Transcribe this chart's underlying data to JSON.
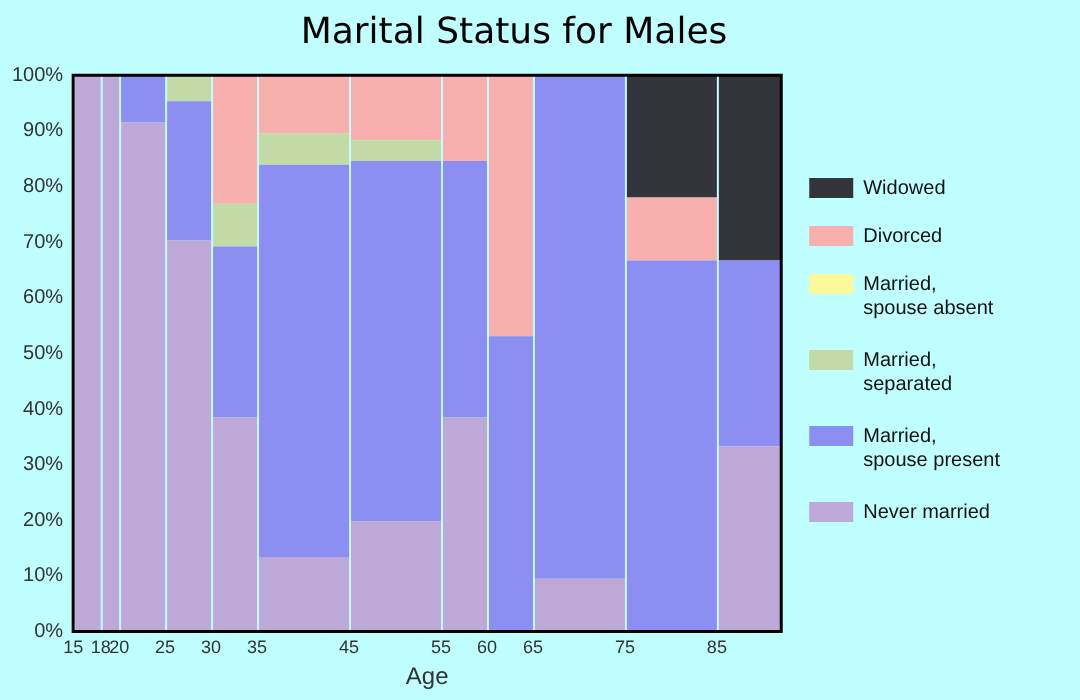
{
  "chart_data": {
    "type": "bar",
    "stacked": true,
    "title": "Marital Status for Males",
    "xlabel": "Age",
    "x": [
      16.5,
      19,
      22.5,
      27.5,
      32.5,
      40,
      50,
      57.5,
      62.5,
      70,
      80,
      88.5
    ],
    "xlim": [
      15,
      92
    ],
    "xticks": [
      15,
      18,
      20,
      25,
      30,
      35,
      45,
      55,
      60,
      65,
      75,
      85
    ],
    "ylim": [
      0,
      100
    ],
    "yticks": [
      {
        "value": 0,
        "label": "0%"
      },
      {
        "value": 10,
        "label": "10%"
      },
      {
        "value": 20,
        "label": "20%"
      },
      {
        "value": 30,
        "label": "30%"
      },
      {
        "value": 40,
        "label": "40%"
      },
      {
        "value": 50,
        "label": "50%"
      },
      {
        "value": 60,
        "label": "60%"
      },
      {
        "value": 70,
        "label": "70%"
      },
      {
        "value": 80,
        "label": "80%"
      },
      {
        "value": 90,
        "label": "90%"
      },
      {
        "value": 100,
        "label": "100%"
      }
    ],
    "grid": false,
    "legend": "right",
    "series": [
      {
        "name": "Never married",
        "color": "#bea8d8",
        "values": [
          100,
          100,
          91.5,
          70.3,
          38.5,
          13.4,
          19.8,
          38.5,
          0,
          9.5,
          0,
          33.3
        ]
      },
      {
        "name": "Married,\nspouse present",
        "color": "#8d8ef2",
        "values": [
          0,
          0,
          8.5,
          25,
          30.7,
          70.5,
          64.8,
          46.1,
          53.1,
          90.5,
          66.7,
          33.4
        ]
      },
      {
        "name": "Married,\nseparated",
        "color": "#c2dba6",
        "values": [
          0,
          0,
          0,
          4.7,
          7.7,
          5.6,
          3.7,
          0,
          0,
          0,
          0,
          0
        ]
      },
      {
        "name": "Married,\nspouse absent",
        "color": "#fdf99b",
        "values": [
          0,
          0,
          0,
          0,
          0,
          0,
          0,
          0,
          0,
          0,
          0,
          0
        ]
      },
      {
        "name": "Divorced",
        "color": "#f8b0ae",
        "values": [
          0,
          0,
          0,
          0,
          23.1,
          10.5,
          11.7,
          15.4,
          46.9,
          0,
          11.3,
          0
        ]
      },
      {
        "name": "Widowed",
        "color": "#34353a",
        "values": [
          0,
          0,
          0,
          0,
          0,
          0,
          0,
          0,
          0,
          0,
          22,
          33.3
        ]
      }
    ]
  }
}
